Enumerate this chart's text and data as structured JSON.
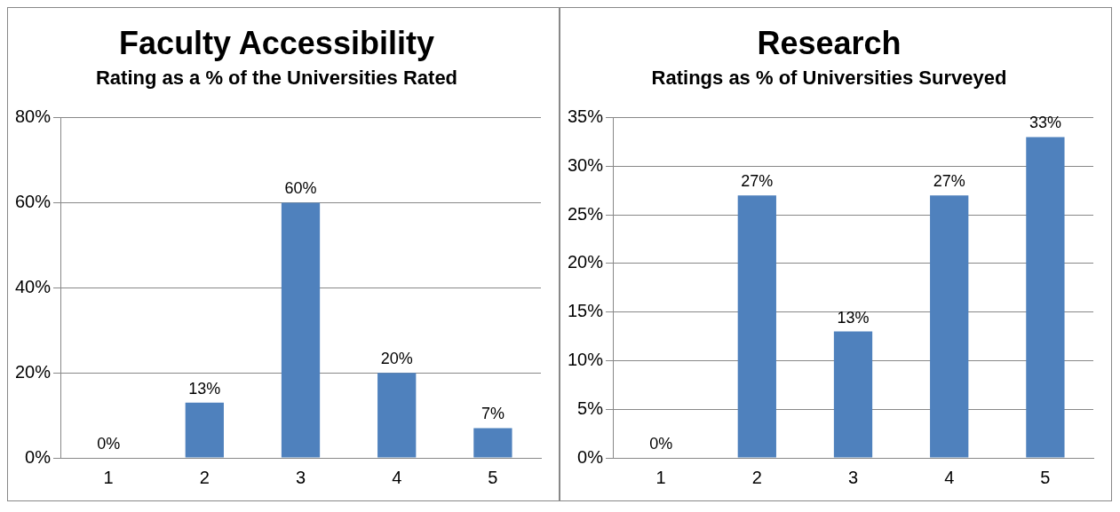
{
  "chart_data": [
    {
      "type": "bar",
      "title": "Faculty Accessibility",
      "subtitle": "Rating as a % of the Universities Rated",
      "categories": [
        "1",
        "2",
        "3",
        "4",
        "5"
      ],
      "values": [
        0,
        13,
        60,
        20,
        7
      ],
      "value_labels": [
        "0%",
        "13%",
        "60%",
        "20%",
        "7%"
      ],
      "color": "#4f81bd",
      "ylim": [
        0,
        80
      ],
      "yticks": [
        {
          "value": 0,
          "label": "0%"
        },
        {
          "value": 20,
          "label": "20%"
        },
        {
          "value": 40,
          "label": "40%"
        },
        {
          "value": 60,
          "label": "60%"
        },
        {
          "value": 80,
          "label": "80%"
        }
      ],
      "grid": "y",
      "legend": false
    },
    {
      "type": "bar",
      "title": "Research",
      "subtitle": "Ratings as % of Universities Surveyed",
      "categories": [
        "1",
        "2",
        "3",
        "4",
        "5"
      ],
      "values": [
        0,
        27,
        13,
        27,
        33
      ],
      "value_labels": [
        "0%",
        "27%",
        "13%",
        "27%",
        "33%"
      ],
      "color": "#4f81bd",
      "ylim": [
        0,
        35
      ],
      "yticks": [
        {
          "value": 0,
          "label": "0%"
        },
        {
          "value": 5,
          "label": "5%"
        },
        {
          "value": 10,
          "label": "10%"
        },
        {
          "value": 15,
          "label": "15%"
        },
        {
          "value": 20,
          "label": "20%"
        },
        {
          "value": 25,
          "label": "25%"
        },
        {
          "value": 30,
          "label": "30%"
        },
        {
          "value": 35,
          "label": "35%"
        }
      ],
      "grid": "y",
      "legend": false
    }
  ]
}
